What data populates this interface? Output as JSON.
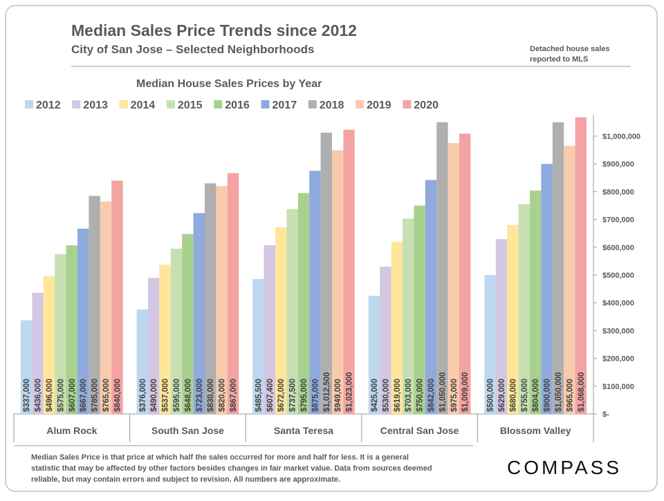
{
  "chart_data": {
    "type": "bar",
    "title": "Median Sales Price Trends since 2012",
    "subtitle": "City of San Jose – Selected Neighborhoods",
    "heading": "Median House Sales Prices by Year",
    "categories": [
      "Alum Rock",
      "South San Jose",
      "Santa Teresa",
      "Central San Jose",
      "Blossom Valley"
    ],
    "series": [
      {
        "name": "2012",
        "color": "#bdd7ee",
        "values": [
          337000,
          376000,
          485500,
          425000,
          500000
        ],
        "value_labels": [
          "$337,000",
          "$376,000",
          "$485,500",
          "$425,000",
          "$500,000"
        ]
      },
      {
        "name": "2013",
        "color": "#d3c7e3",
        "values": [
          436000,
          490000,
          607400,
          530000,
          629000
        ],
        "value_labels": [
          "$436,000",
          "$490,000",
          "$607,400",
          "$530,000",
          "$629,000"
        ]
      },
      {
        "name": "2014",
        "color": "#ffe699",
        "values": [
          496000,
          537000,
          672000,
          619000,
          680000
        ],
        "value_labels": [
          "$496,000",
          "$537,000",
          "$672,000",
          "$619,000",
          "$680,000"
        ]
      },
      {
        "name": "2015",
        "color": "#c6e0b4",
        "values": [
          575000,
          595000,
          737500,
          703000,
          755000
        ],
        "value_labels": [
          "$575,000",
          "$595,000",
          "$737,500",
          "$703,000",
          "$755,000"
        ]
      },
      {
        "name": "2016",
        "color": "#a9d18e",
        "values": [
          607000,
          648000,
          795000,
          750000,
          804000
        ],
        "value_labels": [
          "$607,000",
          "$648,000",
          "$795,000",
          "$750,000",
          "$804,000"
        ]
      },
      {
        "name": "2017",
        "color": "#8faadc",
        "values": [
          667000,
          723000,
          875000,
          842000,
          900000
        ],
        "value_labels": [
          "$667,000",
          "$723,000",
          "$875,000",
          "$842,000",
          "$900,000"
        ]
      },
      {
        "name": "2018",
        "color": "#afafaf",
        "values": [
          785000,
          830000,
          1012500,
          1050000,
          1050000
        ],
        "value_labels": [
          "$785,000",
          "$830,000",
          "$1,012,500",
          "$1,050,000",
          "$1,050,000"
        ]
      },
      {
        "name": "2019",
        "color": "#f8cbad",
        "values": [
          765000,
          820000,
          949000,
          975000,
          965000
        ],
        "value_labels": [
          "$765,000",
          "$820,000",
          "$949,000",
          "$975,000",
          "$965,000"
        ]
      },
      {
        "name": "2020",
        "color": "#f4a3a3",
        "values": [
          840000,
          867000,
          1023000,
          1009000,
          1068000
        ],
        "value_labels": [
          "$840,000",
          "$867,000",
          "$1,023,000",
          "$1,009,000",
          "$1,068,000"
        ]
      }
    ],
    "ylim": [
      0,
      1100000
    ],
    "yticks": [
      {
        "value": 0,
        "label": "$-"
      },
      {
        "value": 100000,
        "label": "$100,000"
      },
      {
        "value": 200000,
        "label": "$200,000"
      },
      {
        "value": 300000,
        "label": "$300,000"
      },
      {
        "value": 400000,
        "label": "$400,000"
      },
      {
        "value": 500000,
        "label": "$500,000"
      },
      {
        "value": 600000,
        "label": "$600,000"
      },
      {
        "value": 700000,
        "label": "$700,000"
      },
      {
        "value": 800000,
        "label": "$800,000"
      },
      {
        "value": 900000,
        "label": "$900,000"
      },
      {
        "value": 1000000,
        "label": "$1,000,000"
      }
    ],
    "grid": false,
    "legend": "top"
  },
  "note": [
    "Detached house sales",
    "reported to MLS"
  ],
  "footnote": [
    "Median Sales Price is that price at which half the sales occurred for more and half for less. It is a general",
    "statistic that may be affected by other factors besides changes in fair market value. Data from sources deemed",
    "reliable, but may contain errors and subject to revision.  All numbers are approximate."
  ],
  "logo": "COMPASS"
}
